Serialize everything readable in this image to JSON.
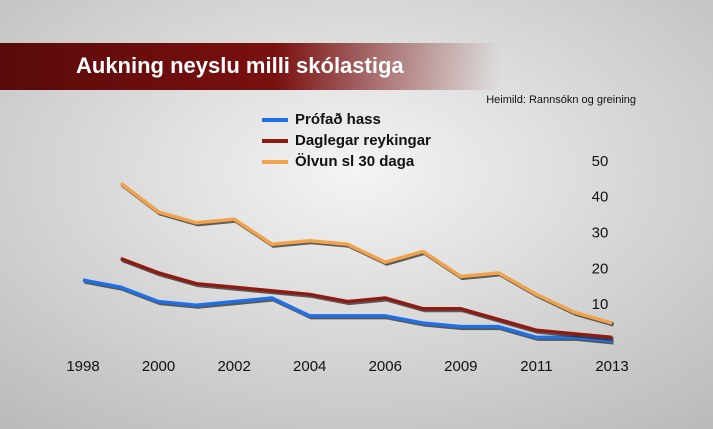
{
  "chart_data": {
    "type": "line",
    "title": "Aukning neyslu milli skólastiga",
    "source": "Heimild: Rannsókn og greining",
    "categories": [
      "1998",
      null,
      "2000",
      null,
      "2002",
      null,
      "2004",
      null,
      "2006",
      null,
      "2009",
      null,
      "2011",
      null,
      "2013"
    ],
    "series": [
      {
        "name": "Prófað hass",
        "color": "#1f6fe6",
        "values": [
          17,
          15,
          11,
          10,
          11,
          12,
          7,
          7,
          7,
          5,
          4,
          4,
          1,
          1,
          0
        ]
      },
      {
        "name": "Daglegar reykingar",
        "color": "#8e1b12",
        "values": [
          null,
          23,
          19,
          16,
          15,
          14,
          13,
          11,
          12,
          9,
          9,
          6,
          3,
          2,
          1
        ]
      },
      {
        "name": "Ölvun sl 30 daga",
        "color": "#f2a24a",
        "values": [
          null,
          44,
          36,
          33,
          34,
          27,
          28,
          27,
          22,
          25,
          18,
          19,
          13,
          8,
          5
        ]
      }
    ],
    "ylim": [
      0,
      55
    ],
    "yticks": [
      10,
      20,
      30,
      40,
      50
    ]
  }
}
